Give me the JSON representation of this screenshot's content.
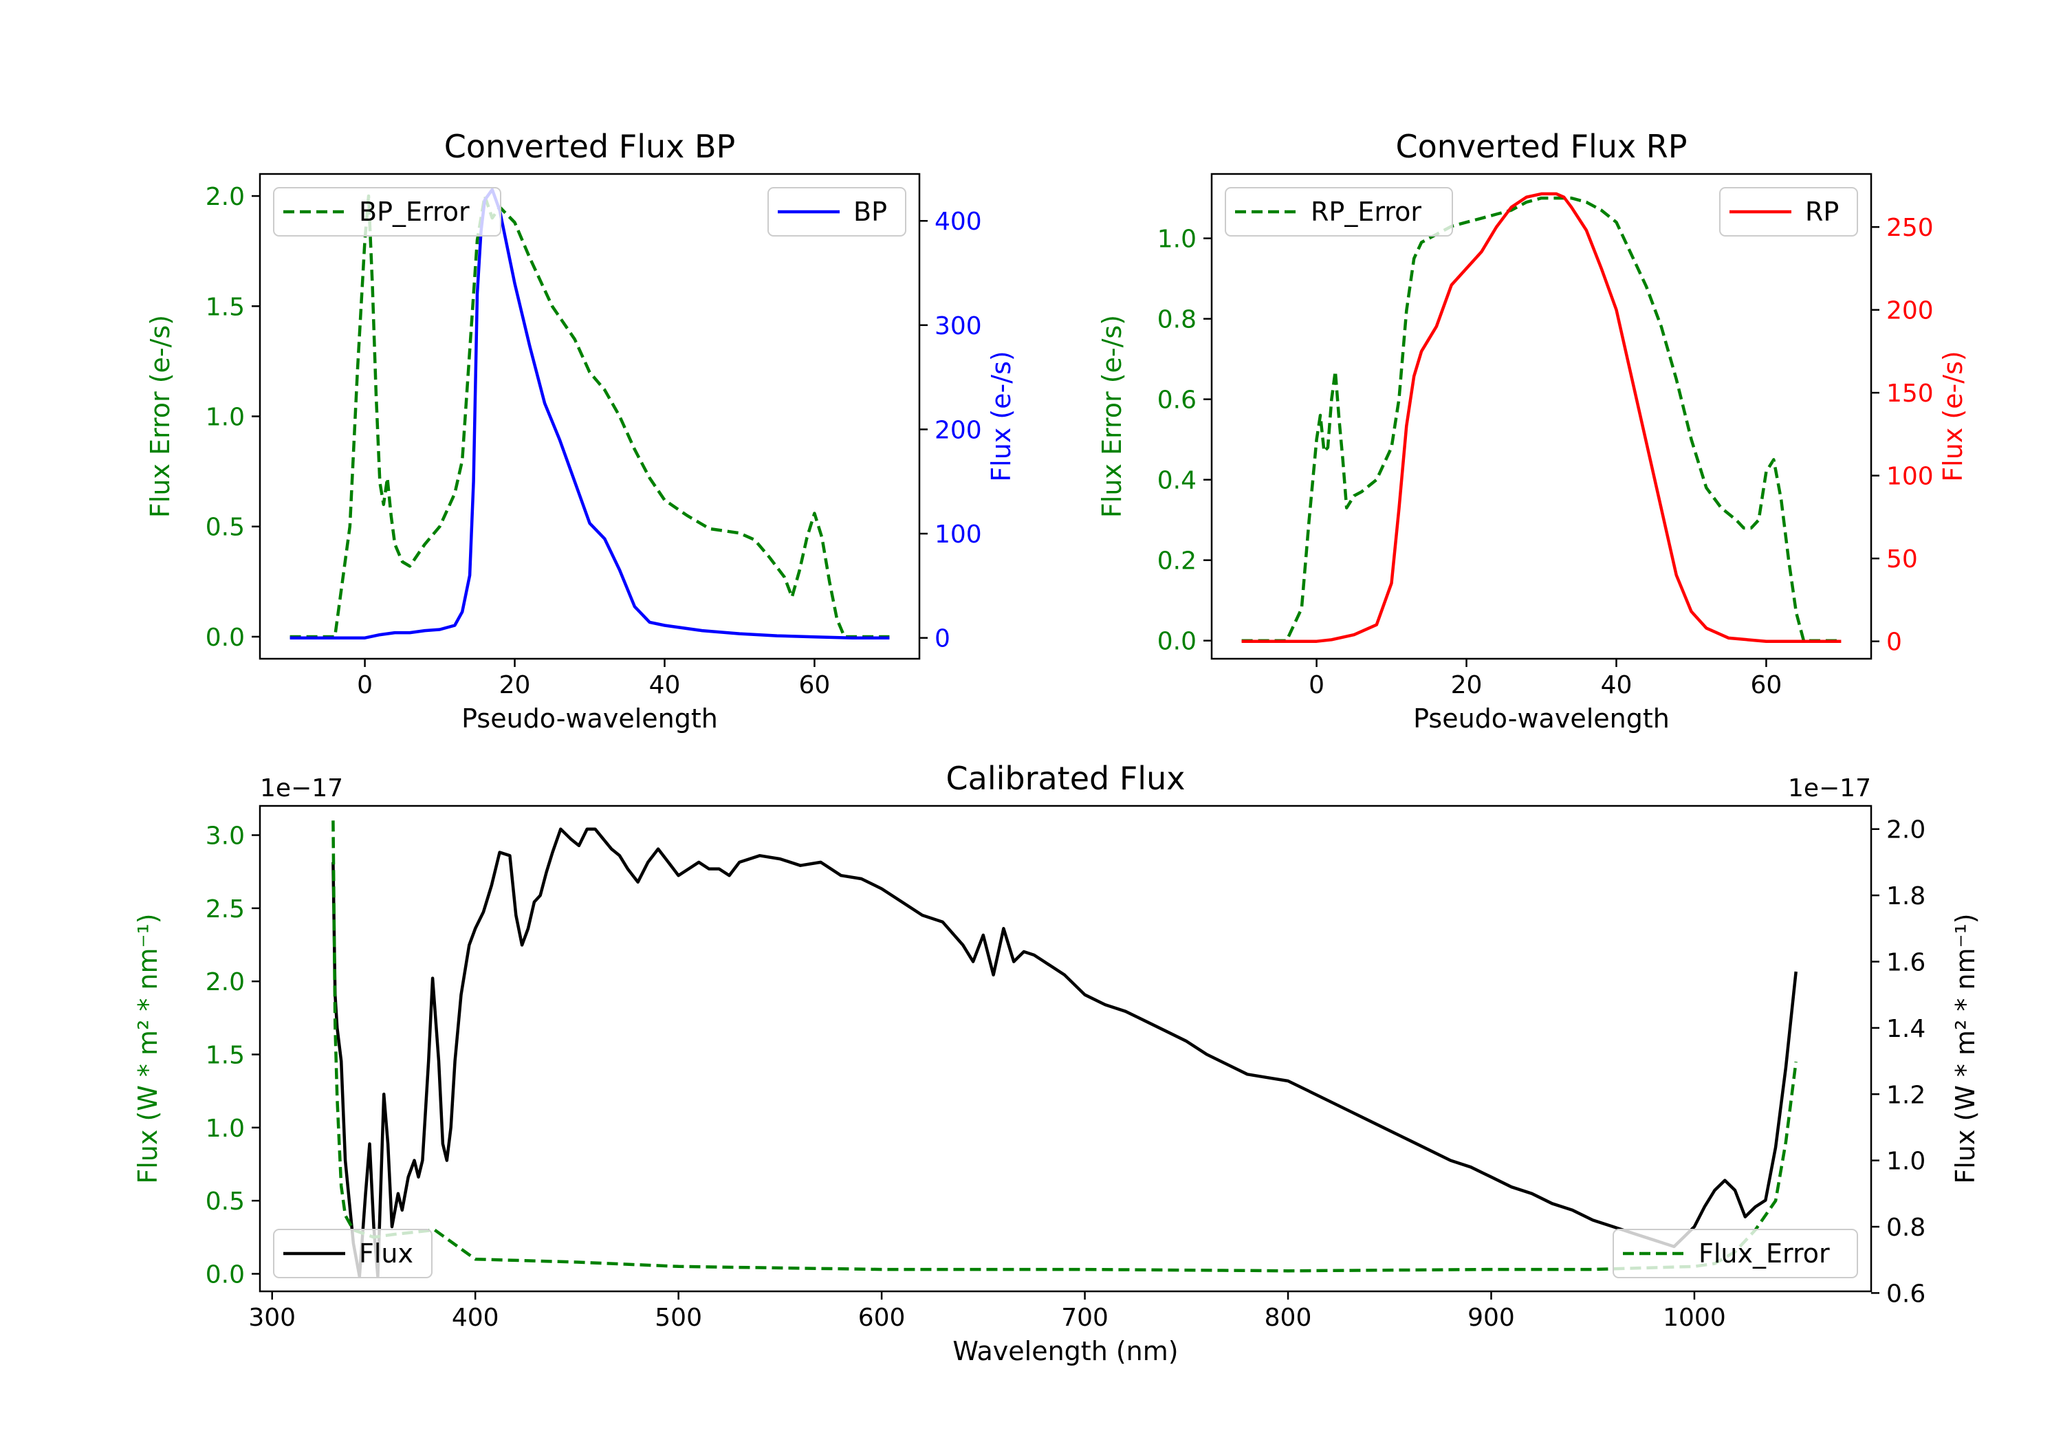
{
  "chart_data": [
    {
      "id": "bp",
      "type": "line",
      "title": "Converted Flux BP",
      "xlabel": "Pseudo-wavelength",
      "ylabel_left": "Flux Error (e-/s)",
      "ylabel_right": "Flux (e-/s)",
      "xlim": [
        -14,
        74
      ],
      "ylim_left": [
        -0.1,
        2.1
      ],
      "ylim_right": [
        -20,
        445
      ],
      "xticks": [
        0,
        20,
        40,
        60
      ],
      "yticks_left": [
        0.0,
        0.5,
        1.0,
        1.5,
        2.0
      ],
      "yticks_right": [
        0,
        100,
        200,
        300,
        400
      ],
      "legend_left": {
        "label": "BP_Error",
        "placement": "upper left"
      },
      "legend_right": {
        "label": "BP",
        "placement": "upper right"
      },
      "colors": {
        "left": "#008000",
        "right": "#0000ff"
      },
      "series": [
        {
          "name": "BP_Error",
          "axis": "left",
          "style": "dashed",
          "color": "#008000",
          "x": [
            -10,
            -4,
            -2,
            -1,
            0,
            0.5,
            1,
            1.5,
            2,
            2.5,
            3,
            3.5,
            4,
            5,
            6,
            8,
            10,
            12,
            13,
            14,
            15,
            16,
            17,
            18,
            20,
            22,
            25,
            28,
            30,
            32,
            34,
            36,
            38,
            40,
            43,
            46,
            50,
            52,
            54,
            56,
            57,
            58,
            59,
            60,
            61,
            62,
            63,
            64,
            66,
            70
          ],
          "y": [
            0.0,
            0.0,
            0.5,
            1.2,
            1.8,
            2.0,
            1.6,
            1.1,
            0.7,
            0.6,
            0.72,
            0.55,
            0.42,
            0.34,
            0.32,
            0.42,
            0.5,
            0.65,
            0.8,
            1.3,
            1.8,
            2.0,
            1.9,
            1.95,
            1.88,
            1.72,
            1.5,
            1.35,
            1.2,
            1.12,
            1.0,
            0.85,
            0.72,
            0.62,
            0.55,
            0.49,
            0.47,
            0.44,
            0.36,
            0.27,
            0.18,
            0.3,
            0.45,
            0.56,
            0.45,
            0.25,
            0.08,
            0.0,
            0.0,
            0.0
          ]
        },
        {
          "name": "BP",
          "axis": "right",
          "style": "solid",
          "color": "#0000ff",
          "x": [
            -10,
            -5,
            0,
            2,
            4,
            6,
            8,
            10,
            12,
            13,
            14,
            14.5,
            15,
            15.5,
            16,
            17,
            18,
            20,
            22,
            24,
            26,
            28,
            30,
            32,
            34,
            36,
            38,
            40,
            45,
            50,
            55,
            60,
            65,
            70
          ],
          "y": [
            0,
            0,
            0,
            3,
            5,
            5,
            7,
            8,
            12,
            25,
            60,
            150,
            330,
            390,
            420,
            430,
            410,
            340,
            280,
            225,
            190,
            150,
            110,
            95,
            65,
            30,
            15,
            12,
            7,
            4,
            2,
            1,
            0,
            0
          ]
        }
      ]
    },
    {
      "id": "rp",
      "type": "line",
      "title": "Converted Flux RP",
      "xlabel": "Pseudo-wavelength",
      "ylabel_left": "Flux Error (e-/s)",
      "ylabel_right": "Flux (e-/s)",
      "xlim": [
        -14,
        74
      ],
      "ylim_left": [
        -0.045,
        1.16
      ],
      "ylim_right": [
        -10.5,
        282
      ],
      "xticks": [
        0,
        20,
        40,
        60
      ],
      "yticks_left": [
        0.0,
        0.2,
        0.4,
        0.6,
        0.8,
        1.0
      ],
      "yticks_right": [
        0,
        50,
        100,
        150,
        200,
        250
      ],
      "legend_left": {
        "label": "RP_Error",
        "placement": "upper left"
      },
      "legend_right": {
        "label": "RP",
        "placement": "upper right"
      },
      "colors": {
        "left": "#008000",
        "right": "#ff0000"
      },
      "series": [
        {
          "name": "RP_Error",
          "axis": "left",
          "style": "dashed",
          "color": "#008000",
          "x": [
            -10,
            -4,
            -2,
            -1,
            0,
            0.5,
            1,
            1.5,
            2,
            2.5,
            3,
            3.5,
            4,
            5,
            6,
            8,
            10,
            11,
            12,
            13,
            14,
            16,
            18,
            20,
            22,
            24,
            26,
            28,
            30,
            32,
            34,
            36,
            38,
            40,
            42,
            44,
            46,
            48,
            50,
            52,
            54,
            56,
            57,
            58,
            59,
            60,
            61,
            62,
            63,
            64,
            65,
            70
          ],
          "y": [
            0.0,
            0.0,
            0.08,
            0.3,
            0.5,
            0.56,
            0.47,
            0.48,
            0.6,
            0.67,
            0.55,
            0.45,
            0.33,
            0.36,
            0.37,
            0.4,
            0.48,
            0.6,
            0.82,
            0.95,
            0.99,
            1.01,
            1.03,
            1.04,
            1.05,
            1.06,
            1.07,
            1.09,
            1.1,
            1.1,
            1.1,
            1.09,
            1.07,
            1.04,
            0.96,
            0.88,
            0.78,
            0.65,
            0.5,
            0.38,
            0.33,
            0.3,
            0.28,
            0.28,
            0.3,
            0.42,
            0.45,
            0.35,
            0.2,
            0.07,
            0.0,
            0.0
          ]
        },
        {
          "name": "RP",
          "axis": "right",
          "style": "solid",
          "color": "#ff0000",
          "x": [
            -10,
            -5,
            0,
            2,
            5,
            8,
            10,
            11,
            12,
            13,
            14,
            16,
            18,
            20,
            22,
            24,
            26,
            28,
            30,
            32,
            33,
            34,
            36,
            38,
            40,
            42,
            44,
            46,
            48,
            50,
            52,
            55,
            60,
            65,
            70
          ],
          "y": [
            0,
            0,
            0,
            1,
            4,
            10,
            35,
            80,
            130,
            160,
            175,
            190,
            215,
            225,
            235,
            250,
            262,
            268,
            270,
            270,
            268,
            262,
            248,
            225,
            200,
            160,
            120,
            80,
            40,
            18,
            8,
            2,
            0,
            0,
            0
          ]
        }
      ]
    },
    {
      "id": "calibrated",
      "type": "line",
      "title": "Calibrated Flux",
      "xlabel": "Wavelength (nm)",
      "ylabel_left": "Flux (W * m² * nm⁻¹)",
      "ylabel_right": "Flux (W * m² * nm⁻¹)",
      "offset_left": "1e−17",
      "offset_right": "1e−17",
      "xlim": [
        294,
        1087
      ],
      "ylim_left": [
        -0.12,
        3.2
      ],
      "ylim_right": [
        0.605,
        2.07
      ],
      "xticks": [
        300,
        400,
        500,
        600,
        700,
        800,
        900,
        1000
      ],
      "yticks_left": [
        0.0,
        0.5,
        1.0,
        1.5,
        2.0,
        2.5,
        3.0
      ],
      "yticks_right": [
        0.6,
        0.8,
        1.0,
        1.2,
        1.4,
        1.6,
        1.8,
        2.0
      ],
      "legend_left": {
        "label": "Flux",
        "placement": "lower left"
      },
      "legend_right": {
        "label": "Flux_Error",
        "placement": "lower right"
      },
      "colors": {
        "left": "#008000",
        "right": "#000000"
      },
      "series": [
        {
          "name": "Flux",
          "axis": "right",
          "style": "solid",
          "color": "#000000",
          "x": [
            330,
            331,
            332,
            334,
            336,
            340,
            343,
            346,
            348,
            350,
            352,
            355,
            357,
            359,
            362,
            364,
            367,
            370,
            372,
            374,
            377,
            379,
            382,
            384,
            386,
            388,
            390,
            393,
            397,
            400,
            404,
            408,
            412,
            417,
            420,
            423,
            426,
            429,
            432,
            435,
            438,
            442,
            447,
            451,
            455,
            459,
            463,
            467,
            471,
            475,
            480,
            485,
            490,
            495,
            500,
            505,
            510,
            515,
            520,
            525,
            530,
            540,
            550,
            560,
            570,
            580,
            590,
            600,
            610,
            620,
            630,
            640,
            645,
            650,
            655,
            660,
            665,
            670,
            675,
            680,
            690,
            700,
            710,
            720,
            730,
            740,
            750,
            760,
            770,
            780,
            790,
            800,
            810,
            820,
            830,
            840,
            850,
            860,
            870,
            880,
            890,
            900,
            910,
            920,
            930,
            940,
            950,
            960,
            970,
            980,
            990,
            995,
            1000,
            1005,
            1010,
            1015,
            1020,
            1025,
            1030,
            1035,
            1040,
            1045,
            1050
          ],
          "y": [
            1.9,
            1.5,
            1.4,
            1.3,
            1.0,
            0.75,
            0.65,
            0.9,
            1.05,
            0.8,
            0.65,
            1.2,
            1.05,
            0.8,
            0.9,
            0.85,
            0.95,
            1.0,
            0.95,
            1.0,
            1.3,
            1.55,
            1.3,
            1.05,
            1.0,
            1.1,
            1.3,
            1.5,
            1.65,
            1.7,
            1.75,
            1.83,
            1.93,
            1.92,
            1.74,
            1.65,
            1.7,
            1.78,
            1.8,
            1.87,
            1.93,
            2.0,
            1.97,
            1.95,
            2.0,
            2.0,
            1.97,
            1.94,
            1.92,
            1.88,
            1.84,
            1.9,
            1.94,
            1.9,
            1.86,
            1.88,
            1.9,
            1.88,
            1.88,
            1.86,
            1.9,
            1.92,
            1.91,
            1.89,
            1.9,
            1.86,
            1.85,
            1.82,
            1.78,
            1.74,
            1.72,
            1.65,
            1.6,
            1.68,
            1.56,
            1.7,
            1.6,
            1.63,
            1.62,
            1.6,
            1.56,
            1.5,
            1.47,
            1.45,
            1.42,
            1.39,
            1.36,
            1.32,
            1.29,
            1.26,
            1.25,
            1.24,
            1.21,
            1.18,
            1.15,
            1.12,
            1.09,
            1.06,
            1.03,
            1.0,
            0.98,
            0.95,
            0.92,
            0.9,
            0.87,
            0.85,
            0.82,
            0.8,
            0.78,
            0.76,
            0.74,
            0.77,
            0.8,
            0.86,
            0.91,
            0.94,
            0.91,
            0.83,
            0.86,
            0.88,
            1.04,
            1.28,
            1.57
          ]
        },
        {
          "name": "Flux_Error",
          "axis": "left",
          "style": "dashed",
          "color": "#008000",
          "x": [
            330,
            331,
            332,
            333,
            334,
            336,
            340,
            350,
            360,
            380,
            400,
            450,
            500,
            600,
            700,
            800,
            900,
            950,
            1000,
            1010,
            1020,
            1030,
            1040,
            1045,
            1050
          ],
          "y": [
            3.1,
            1.7,
            1.2,
            0.9,
            0.6,
            0.4,
            0.3,
            0.25,
            0.27,
            0.3,
            0.1,
            0.08,
            0.05,
            0.03,
            0.03,
            0.02,
            0.03,
            0.03,
            0.05,
            0.07,
            0.15,
            0.3,
            0.5,
            0.9,
            1.45
          ]
        }
      ]
    }
  ]
}
